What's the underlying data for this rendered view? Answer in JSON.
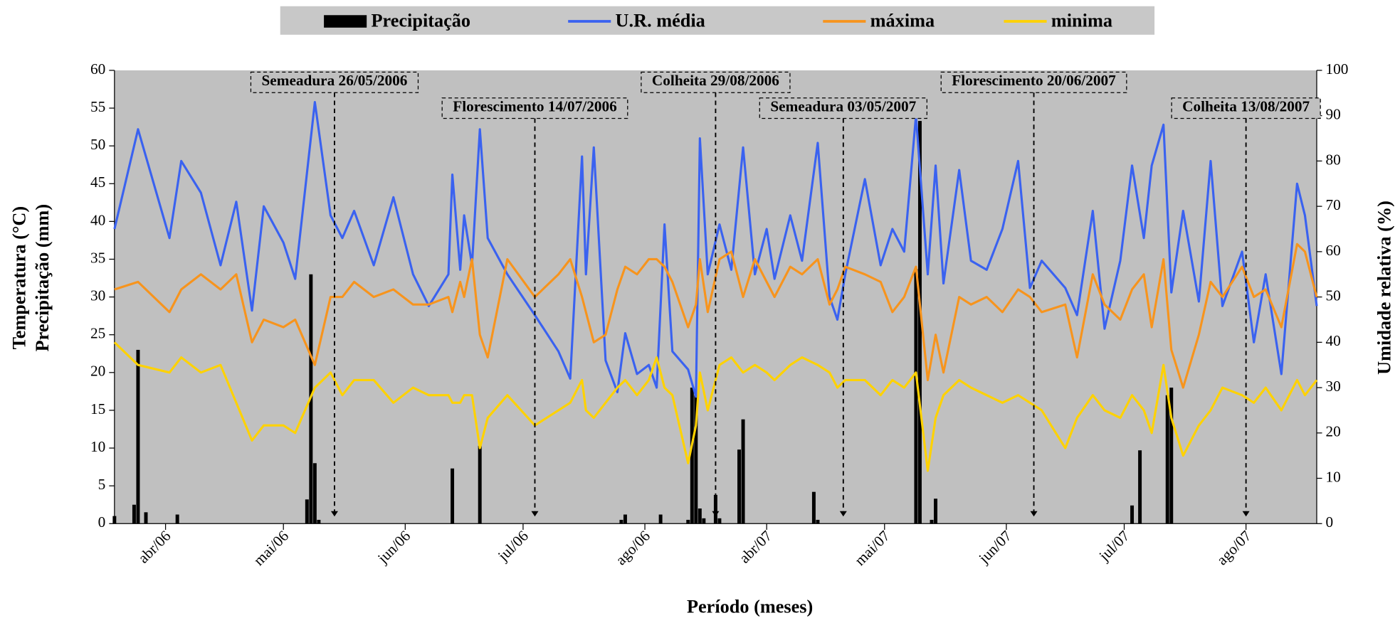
{
  "chart_data": {
    "type": "line",
    "y_label_lines": [
      "Temperatura (°C)",
      "Precipitação (mm)"
    ],
    "y2_label": "Umidade relativa (%)",
    "x_label": "Período (meses)",
    "xlim": [
      0,
      306
    ],
    "xticks": [
      {
        "value": 13,
        "label": "abr/06"
      },
      {
        "value": 43,
        "label": "mai/06"
      },
      {
        "value": 74,
        "label": "jun/06"
      },
      {
        "value": 104,
        "label": "jul/06"
      },
      {
        "value": 135,
        "label": "ago/06"
      },
      {
        "value": 166,
        "label": "abr/07"
      },
      {
        "value": 196,
        "label": "mai/07"
      },
      {
        "value": 227,
        "label": "jun/07"
      },
      {
        "value": 257,
        "label": "jul/07"
      },
      {
        "value": 288,
        "label": "ago/07"
      }
    ],
    "ylim": [
      0,
      60
    ],
    "yticks": [
      0,
      5,
      10,
      15,
      20,
      25,
      30,
      35,
      40,
      45,
      50,
      55,
      60
    ],
    "y2lim": [
      0,
      100
    ],
    "y2ticks": [
      0,
      10,
      20,
      30,
      40,
      50,
      60,
      70,
      80,
      90,
      100
    ],
    "background": "#c0c0c0",
    "bars": {
      "name": "Precipitação",
      "color": "#000000",
      "x": [
        0,
        5,
        6,
        8,
        16,
        49,
        50,
        51,
        52,
        86,
        93,
        129,
        130,
        139,
        146,
        147,
        148,
        149,
        150,
        153,
        154,
        159,
        160,
        178,
        179,
        204,
        205,
        208,
        209,
        259,
        261,
        268,
        269
      ],
      "values": [
        1,
        2.5,
        23,
        1.5,
        1.2,
        3.2,
        33,
        8,
        0.5,
        7.3,
        10.3,
        0.5,
        1.2,
        1.2,
        0.5,
        18,
        17,
        2,
        0.7,
        3.8,
        0.7,
        9.8,
        13.8,
        4.2,
        0.5,
        33.7,
        53.3,
        0.5,
        3.3,
        2.4,
        9.7,
        17,
        18
      ]
    },
    "x": [
      0,
      6,
      14,
      17,
      22,
      27,
      31,
      35,
      38,
      43,
      46,
      51,
      55,
      58,
      61,
      66,
      71,
      76,
      80,
      85,
      86,
      88,
      89,
      91,
      93,
      95,
      100,
      107,
      113,
      116,
      119,
      120,
      122,
      125,
      128,
      130,
      133,
      136,
      138,
      140,
      142,
      146,
      148,
      149,
      151,
      154,
      157,
      160,
      163,
      166,
      168,
      172,
      175,
      179,
      182,
      184,
      186,
      191,
      195,
      198,
      201,
      204,
      207,
      209,
      211,
      215,
      218,
      222,
      226,
      230,
      233,
      236,
      242,
      245,
      249,
      252,
      256,
      259,
      262,
      264,
      267,
      269,
      272,
      276,
      279,
      282,
      287,
      290,
      293,
      297,
      301,
      303,
      306
    ],
    "series": [
      {
        "name": "U.R. média",
        "color": "#3a62f0",
        "axis": "y2",
        "values": [
          65,
          87,
          63,
          80,
          73,
          57,
          71,
          47,
          70,
          62,
          54,
          93,
          68,
          63,
          69,
          57,
          72,
          55,
          48,
          55,
          77,
          56,
          68,
          57,
          87,
          63,
          55,
          46,
          38,
          32,
          81,
          55,
          83,
          36,
          29,
          42,
          33,
          35,
          30,
          66,
          38,
          34,
          28,
          85,
          55,
          66,
          56,
          83,
          55,
          65,
          54,
          68,
          58,
          84,
          50,
          45,
          55,
          76,
          57,
          65,
          60,
          90,
          55,
          79,
          53,
          78,
          58,
          56,
          65,
          80,
          52,
          58,
          52,
          46,
          69,
          43,
          58,
          79,
          63,
          79,
          88,
          51,
          69,
          49,
          80,
          48,
          60,
          40,
          55,
          33,
          75,
          68,
          48
        ]
      },
      {
        "name": "máxima",
        "color": "#f7941d",
        "values": [
          31,
          32,
          28,
          31,
          33,
          31,
          33,
          24,
          27,
          26,
          27,
          21,
          30,
          30,
          32,
          30,
          31,
          29,
          29,
          30,
          28,
          32,
          30,
          35,
          25,
          22,
          35,
          30,
          33,
          35,
          30,
          28,
          24,
          25,
          31,
          34,
          33,
          35,
          35,
          34,
          32,
          26,
          29,
          35,
          28,
          35,
          36,
          30,
          35,
          32,
          30,
          34,
          33,
          35,
          29,
          31,
          34,
          33,
          32,
          28,
          30,
          34,
          19,
          25,
          20,
          30,
          29,
          30,
          28,
          31,
          30,
          28,
          29,
          22,
          33,
          29,
          27,
          31,
          33,
          26,
          35,
          23,
          18,
          25,
          32,
          30,
          34,
          30,
          31,
          26,
          37,
          36,
          30
        ]
      },
      {
        "name": "minima",
        "color": "#ffd200",
        "values": [
          24,
          21,
          20,
          22,
          20,
          21,
          16,
          11,
          13,
          13,
          12,
          18,
          20,
          17,
          19,
          19,
          16,
          18,
          17,
          17,
          16,
          16,
          17,
          17,
          10,
          14,
          17,
          13,
          15,
          16,
          19,
          15,
          14,
          16,
          18,
          19,
          17,
          19,
          22,
          18,
          17,
          8,
          13,
          20,
          15,
          21,
          22,
          20,
          21,
          20,
          19,
          21,
          22,
          21,
          20,
          18,
          19,
          19,
          17,
          19,
          18,
          20,
          7,
          14,
          17,
          19,
          18,
          17,
          16,
          17,
          16,
          15,
          10,
          14,
          17,
          15,
          14,
          17,
          15,
          12,
          21,
          14,
          9,
          13,
          15,
          18,
          17,
          16,
          18,
          15,
          19,
          17,
          19
        ]
      }
    ],
    "annotations": [
      {
        "text": "Semeadura 26/05/2006",
        "x": 56
      },
      {
        "text": "Florescimento 14/07/2006",
        "x": 107
      },
      {
        "text": "Colheita 29/08/2006",
        "x": 153
      },
      {
        "text": "Semeadura 03/05/2007",
        "x": 185.5
      },
      {
        "text": "Florescimento 20/06/2007",
        "x": 234
      },
      {
        "text": "Colheita 13/08/2007",
        "x": 288
      }
    ]
  }
}
